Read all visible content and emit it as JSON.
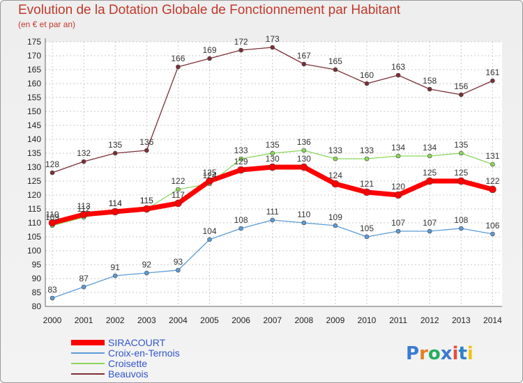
{
  "header": {
    "title": "Evolution de la Dotation Globale de Fonctionnement par Habitant",
    "subtitle": "(en € et par an)"
  },
  "logo": "Proxiti",
  "chart_data": {
    "type": "line",
    "x": [
      "2000",
      "2001",
      "2002",
      "2003",
      "2004",
      "2005",
      "2006",
      "2007",
      "2008",
      "2009",
      "2010",
      "2011",
      "2012",
      "2013",
      "2014"
    ],
    "ylim": [
      80,
      175
    ],
    "yticks": [
      80,
      85,
      90,
      95,
      100,
      105,
      110,
      115,
      120,
      125,
      130,
      135,
      140,
      145,
      150,
      155,
      160,
      165,
      170,
      175
    ],
    "grid": true,
    "legend_position": "bottom-left",
    "series": [
      {
        "name": "SIRACOURT",
        "color": "#ff0000",
        "values": [
          110,
          113,
          114,
          115,
          117,
          125,
          129,
          130,
          130,
          124,
          121,
          120,
          125,
          125,
          122
        ]
      },
      {
        "name": "Croix-en-Ternois",
        "color": "#5b9bd5",
        "values": [
          83,
          87,
          91,
          92,
          93,
          104,
          108,
          111,
          110,
          109,
          105,
          107,
          107,
          108,
          106
        ]
      },
      {
        "name": "Croisette",
        "color": "#8ad65b",
        "values": [
          109,
          112,
          114,
          115,
          122,
          124,
          133,
          135,
          136,
          133,
          133,
          134,
          134,
          135,
          131
        ]
      },
      {
        "name": "Beauvois",
        "color": "#7b2f36",
        "values": [
          128,
          132,
          135,
          136,
          166,
          169,
          172,
          173,
          167,
          165,
          160,
          163,
          158,
          156,
          161
        ]
      }
    ]
  }
}
